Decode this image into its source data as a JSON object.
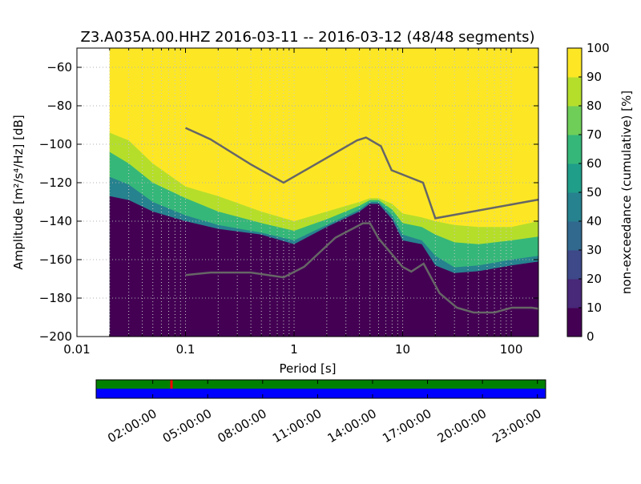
{
  "chart_data": {
    "type": "heatmap",
    "title": "Z3.A035A.00.HHZ   2016-03-11 -- 2016-03-12  (48/48 segments)",
    "xlabel": "Period [s]",
    "ylabel": "Amplitude [m²/s⁴/Hz] [dB]",
    "x_scale": "log",
    "xlim": [
      0.01,
      178
    ],
    "ylim": [
      -200,
      -50
    ],
    "x_ticks": [
      {
        "value": 0.01,
        "label": "0.01"
      },
      {
        "value": 0.1,
        "label": "0.1"
      },
      {
        "value": 1,
        "label": "1"
      },
      {
        "value": 10,
        "label": "10"
      },
      {
        "value": 100,
        "label": "100"
      }
    ],
    "y_ticks": [
      {
        "value": -60,
        "label": "−60"
      },
      {
        "value": -80,
        "label": "−80"
      },
      {
        "value": -100,
        "label": "−100"
      },
      {
        "value": -120,
        "label": "−120"
      },
      {
        "value": -140,
        "label": "−140"
      },
      {
        "value": -160,
        "label": "−160"
      },
      {
        "value": -180,
        "label": "−180"
      },
      {
        "value": -200,
        "label": "−200"
      }
    ],
    "grid": true,
    "data_start_period": 0.02,
    "colorbar": {
      "label": "non-exceedance (cumulative) [%]",
      "min": 0,
      "max": 100,
      "ticks": [
        {
          "value": 0,
          "label": "0"
        },
        {
          "value": 10,
          "label": "10"
        },
        {
          "value": 20,
          "label": "20"
        },
        {
          "value": 30,
          "label": "30"
        },
        {
          "value": 40,
          "label": "40"
        },
        {
          "value": 50,
          "label": "50"
        },
        {
          "value": 60,
          "label": "60"
        },
        {
          "value": 70,
          "label": "70"
        },
        {
          "value": 80,
          "label": "80"
        },
        {
          "value": 90,
          "label": "90"
        },
        {
          "value": 100,
          "label": "100"
        }
      ],
      "colors": [
        "#440154",
        "#482878",
        "#3e4989",
        "#31688e",
        "#26828e",
        "#1f9e89",
        "#35b779",
        "#6ece58",
        "#b5de2b",
        "#fde725"
      ]
    },
    "percentile_bands": [
      {
        "percent": 5,
        "values": [
          [
            0.02,
            -127
          ],
          [
            0.03,
            -129
          ],
          [
            0.05,
            -135
          ],
          [
            0.1,
            -140
          ],
          [
            0.2,
            -144
          ],
          [
            0.5,
            -147
          ],
          [
            1,
            -152
          ],
          [
            2,
            -143
          ],
          [
            4,
            -135
          ],
          [
            5,
            -131
          ],
          [
            6,
            -131
          ],
          [
            8,
            -139
          ],
          [
            10,
            -150
          ],
          [
            15,
            -152
          ],
          [
            20,
            -163
          ],
          [
            30,
            -167
          ],
          [
            50,
            -166
          ],
          [
            100,
            -163
          ],
          [
            178,
            -161
          ]
        ]
      },
      {
        "percent": 50,
        "values": [
          [
            0.02,
            -117
          ],
          [
            0.03,
            -121
          ],
          [
            0.05,
            -130
          ],
          [
            0.1,
            -137
          ],
          [
            0.2,
            -142
          ],
          [
            0.5,
            -146
          ],
          [
            1,
            -150
          ],
          [
            2,
            -142
          ],
          [
            4,
            -134
          ],
          [
            5,
            -130
          ],
          [
            6,
            -130
          ],
          [
            8,
            -137
          ],
          [
            10,
            -147
          ],
          [
            15,
            -150
          ],
          [
            20,
            -158
          ],
          [
            30,
            -164
          ],
          [
            50,
            -163
          ],
          [
            100,
            -160
          ],
          [
            178,
            -158
          ]
        ]
      },
      {
        "percent": 80,
        "values": [
          [
            0.02,
            -104
          ],
          [
            0.03,
            -110
          ],
          [
            0.05,
            -120
          ],
          [
            0.1,
            -128
          ],
          [
            0.2,
            -135
          ],
          [
            0.5,
            -141
          ],
          [
            1,
            -145
          ],
          [
            2,
            -139
          ],
          [
            4,
            -132
          ],
          [
            5,
            -129
          ],
          [
            6,
            -129
          ],
          [
            8,
            -134
          ],
          [
            10,
            -141
          ],
          [
            15,
            -143
          ],
          [
            20,
            -147
          ],
          [
            30,
            -151
          ],
          [
            50,
            -152
          ],
          [
            100,
            -150
          ],
          [
            178,
            -148
          ]
        ]
      },
      {
        "percent": 95,
        "values": [
          [
            0.02,
            -94
          ],
          [
            0.03,
            -98
          ],
          [
            0.05,
            -110
          ],
          [
            0.1,
            -122
          ],
          [
            0.2,
            -127
          ],
          [
            0.5,
            -135
          ],
          [
            1,
            -140
          ],
          [
            2,
            -135
          ],
          [
            4,
            -130
          ],
          [
            5,
            -128
          ],
          [
            6,
            -128
          ],
          [
            8,
            -131
          ],
          [
            10,
            -136
          ],
          [
            15,
            -138
          ],
          [
            20,
            -140
          ],
          [
            30,
            -142
          ],
          [
            50,
            -143
          ],
          [
            100,
            -143
          ],
          [
            178,
            -140
          ]
        ]
      }
    ],
    "noise_models": [
      {
        "values": [
          [
            0.1,
            -91.5
          ],
          [
            0.17,
            -97.4
          ],
          [
            0.4,
            -110.5
          ],
          [
            0.8,
            -120
          ],
          [
            3.8,
            -98
          ],
          [
            4.6,
            -96.5
          ],
          [
            6.3,
            -101
          ],
          [
            7.9,
            -113.5
          ],
          [
            15.4,
            -120
          ],
          [
            20,
            -138.5
          ],
          [
            178,
            -128.8
          ]
        ]
      },
      {
        "values": [
          [
            0.1,
            -168
          ],
          [
            0.17,
            -166.7
          ],
          [
            0.4,
            -166.7
          ],
          [
            0.8,
            -169.2
          ],
          [
            1.24,
            -163.7
          ],
          [
            2.4,
            -148.6
          ],
          [
            4.3,
            -141.1
          ],
          [
            5,
            -141.1
          ],
          [
            6,
            -149
          ],
          [
            10,
            -163.8
          ],
          [
            12,
            -166.2
          ],
          [
            15.6,
            -162.1
          ],
          [
            21.9,
            -177.5
          ],
          [
            31.6,
            -185
          ],
          [
            45,
            -187.5
          ],
          [
            70,
            -187.5
          ],
          [
            101,
            -185
          ],
          [
            154,
            -185
          ],
          [
            178,
            -185.5
          ]
        ]
      }
    ]
  },
  "timeline": {
    "labels": [
      "02:00:00",
      "05:00:00",
      "08:00:00",
      "11:00:00",
      "14:00:00",
      "17:00:00",
      "20:00:00",
      "23:00:00"
    ],
    "tick_hours": [
      2,
      5,
      8,
      11,
      14,
      17,
      20,
      23
    ],
    "start_hour": -1.09,
    "end_hour": 23.45,
    "coverage_color": "#008000",
    "data_color": "#0000ff",
    "gap_color": "#ff0000",
    "gaps_hours": [
      3.0
    ]
  }
}
